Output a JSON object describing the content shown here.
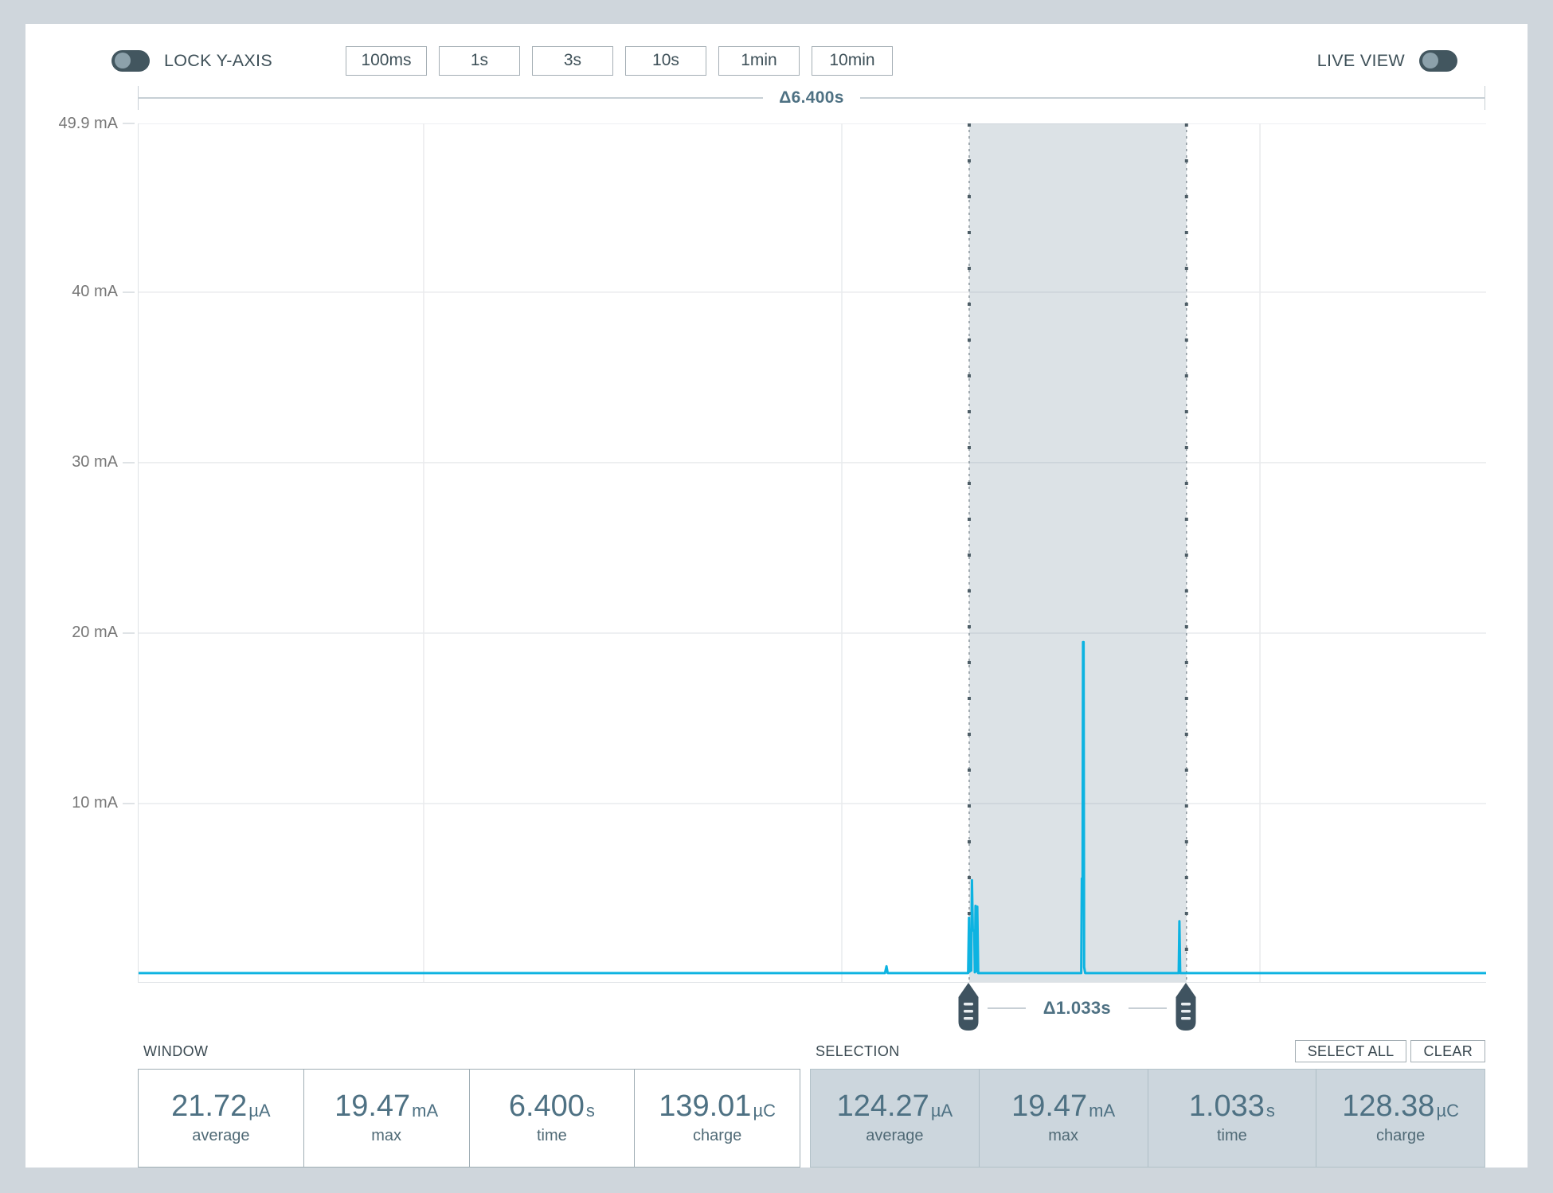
{
  "header": {
    "lock_y_axis_label": "LOCK Y-AXIS",
    "lock_y_axis_on": false,
    "live_view_label": "LIVE VIEW",
    "live_view_on": false,
    "window_buttons": [
      "100ms",
      "1s",
      "3s",
      "10s",
      "1min",
      "10min"
    ]
  },
  "chart_data": {
    "type": "line",
    "y_unit": "mA",
    "x_unit": "s",
    "x_range": [
      0,
      6.4
    ],
    "y_max": 49.9,
    "y_ticks": [
      {
        "label": "49.9 mA",
        "mA": 49.9
      },
      {
        "label": "40 mA",
        "mA": 40
      },
      {
        "label": "30 mA",
        "mA": 30
      },
      {
        "label": "20 mA",
        "mA": 20
      },
      {
        "label": "10 mA",
        "mA": 10
      }
    ],
    "x_gridlines_s": [
      1.354,
      3.34,
      5.326
    ],
    "window_delta_label": "Δ6.400s",
    "selection": {
      "start_s": 3.945,
      "end_s": 4.977,
      "delta_label": "Δ1.033s"
    },
    "line_color": "#0db3e1",
    "selection_fill": "rgba(96,125,139,0.22)",
    "series": [
      {
        "name": "current",
        "points": [
          [
            0,
            0.05
          ],
          [
            3.545,
            0.05
          ],
          [
            3.552,
            0.45
          ],
          [
            3.558,
            0.05
          ],
          [
            3.94,
            0.05
          ],
          [
            3.944,
            3.3
          ],
          [
            3.9475,
            0.15
          ],
          [
            3.951,
            2.6
          ],
          [
            3.9545,
            0.2
          ],
          [
            3.958,
            5.5
          ],
          [
            3.962,
            2.55
          ],
          [
            3.969,
            2.55
          ],
          [
            3.9715,
            0.1
          ],
          [
            3.975,
            4.0
          ],
          [
            3.979,
            0.15
          ],
          [
            3.9835,
            3.95
          ],
          [
            3.988,
            0.05
          ],
          [
            4.477,
            0.05
          ],
          [
            4.48,
            5.6
          ],
          [
            4.4835,
            5.6
          ],
          [
            4.4855,
            19.47
          ],
          [
            4.4885,
            19.47
          ],
          [
            4.491,
            0.4
          ],
          [
            4.496,
            0.05
          ],
          [
            4.94,
            0.05
          ],
          [
            4.9435,
            3.1
          ],
          [
            4.947,
            0.05
          ],
          [
            6.4,
            0.05
          ]
        ]
      }
    ]
  },
  "stats": {
    "window": {
      "title": "WINDOW",
      "cells": [
        {
          "value": "21.72",
          "unit": "µA",
          "label": "average"
        },
        {
          "value": "19.47",
          "unit": "mA",
          "label": "max"
        },
        {
          "value": "6.400",
          "unit": "s",
          "label": "time"
        },
        {
          "value": "139.01",
          "unit": "µC",
          "label": "charge"
        }
      ]
    },
    "selection": {
      "title": "SELECTION",
      "select_all_label": "SELECT ALL",
      "clear_label": "CLEAR",
      "cells": [
        {
          "value": "124.27",
          "unit": "µA",
          "label": "average"
        },
        {
          "value": "19.47",
          "unit": "mA",
          "label": "max"
        },
        {
          "value": "1.033",
          "unit": "s",
          "label": "time"
        },
        {
          "value": "128.38",
          "unit": "µC",
          "label": "charge"
        }
      ]
    }
  },
  "colors": {
    "accent_blue": "#0db3e1",
    "slate_dark": "#42565f",
    "stat_text": "#4e7183",
    "page_background": "#cfd6dc"
  }
}
